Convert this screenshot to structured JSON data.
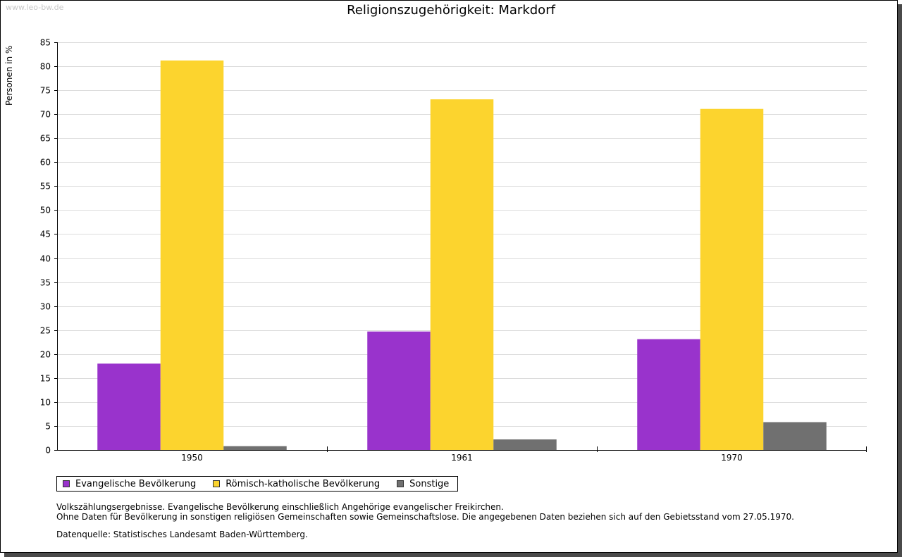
{
  "watermark": "www.leo-bw.de",
  "chart_data": {
    "type": "bar",
    "title": "Religionszugehörigkeit: Markdorf",
    "xlabel": "",
    "ylabel": "Personen in %",
    "ylim": [
      0,
      85
    ],
    "yticks": [
      0,
      5,
      10,
      15,
      20,
      25,
      30,
      35,
      40,
      45,
      50,
      55,
      60,
      65,
      70,
      75,
      80,
      85
    ],
    "grid": true,
    "legend_position": "bottom-left",
    "categories": [
      "1950",
      "1961",
      "1970"
    ],
    "series": [
      {
        "name": "Evangelische Bevölkerung",
        "color": "#9933cc",
        "values": [
          18.0,
          24.7,
          23.1
        ]
      },
      {
        "name": "Römisch-katholische Bevölkerung",
        "color": "#fcd42e",
        "values": [
          81.2,
          73.1,
          71.1
        ]
      },
      {
        "name": "Sonstige",
        "color": "#707070",
        "values": [
          0.8,
          2.2,
          5.8
        ]
      }
    ]
  },
  "notes": {
    "line1": "Volkszählungsergebnisse. Evangelische Bevölkerung einschließlich Angehörige evangelischer Freikirchen.",
    "line2": "Ohne Daten für Bevölkerung in sonstigen religiösen Gemeinschaften sowie Gemeinschaftslose. Die angegebenen Daten beziehen sich auf den Gebietsstand vom 27.05.1970.",
    "source": "Datenquelle: Statistisches Landesamt Baden-Württemberg."
  }
}
